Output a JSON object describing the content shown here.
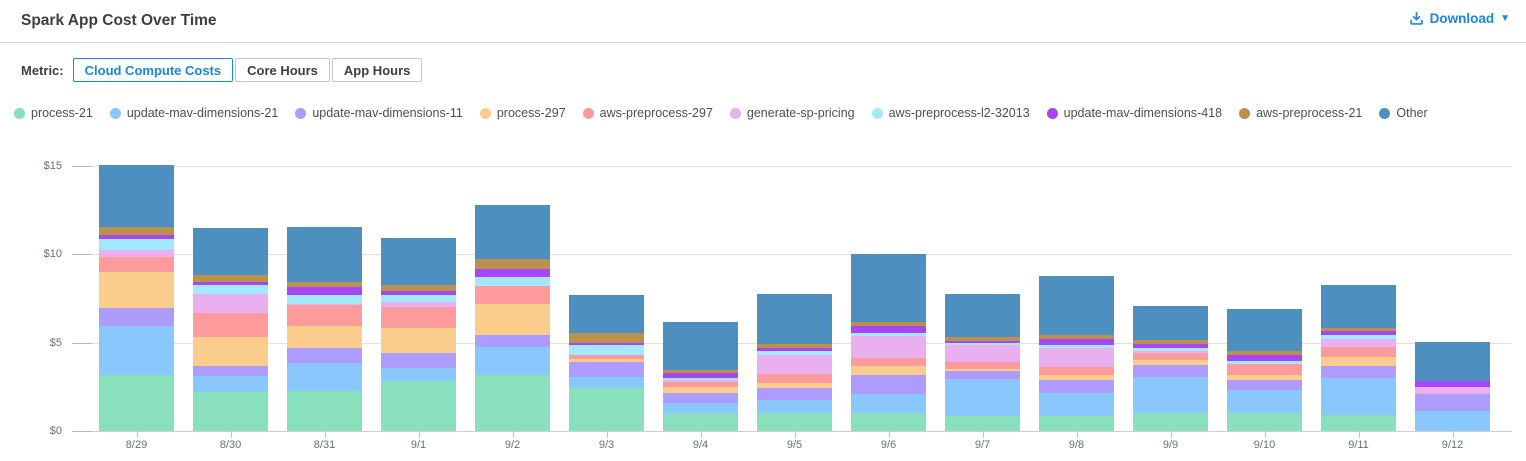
{
  "header": {
    "title": "Spark App Cost Over Time",
    "download_label": "Download"
  },
  "controls": {
    "metric_label": "Metric:",
    "options": [
      {
        "label": "Cloud Compute Costs",
        "active": true
      },
      {
        "label": "Core Hours",
        "active": false
      },
      {
        "label": "App Hours",
        "active": false
      }
    ]
  },
  "colors": {
    "accent_blue": "#1a86e3",
    "grid": "#e0e0e0",
    "axis_text": "#6a6e73"
  },
  "chart_data": {
    "type": "bar",
    "stacked": true,
    "title": "Spark App Cost Over Time",
    "xlabel": "",
    "ylabel": "",
    "ylim": [
      0,
      15
    ],
    "grid": true,
    "legend_position": "top",
    "y_ticks": [
      {
        "label": "$0",
        "value": 0
      },
      {
        "label": "$5",
        "value": 5
      },
      {
        "label": "$10",
        "value": 10
      },
      {
        "label": "$15",
        "value": 15
      }
    ],
    "categories": [
      "8/29",
      "8/30",
      "8/31",
      "9/1",
      "9/2",
      "9/3",
      "9/4",
      "9/5",
      "9/6",
      "9/7",
      "9/8",
      "9/9",
      "9/10",
      "9/11",
      "9/12"
    ],
    "series": [
      {
        "name": "process-21",
        "color": "#89e0bd",
        "values": [
          3.15,
          2.2,
          2.25,
          2.85,
          3.15,
          2.45,
          1.0,
          1.0,
          1.0,
          0.85,
          0.85,
          1.0,
          1.0,
          0.9,
          0
        ]
      },
      {
        "name": "update-mav-dimensions-21",
        "color": "#8ac7fc",
        "values": [
          2.8,
          0.9,
          1.6,
          0.7,
          1.6,
          0.6,
          0.6,
          0.75,
          1.1,
          2.1,
          1.3,
          2.05,
          1.3,
          2.1,
          1.15
        ]
      },
      {
        "name": "update-mav-dimensions-11",
        "color": "#ae9bfe",
        "values": [
          1.0,
          0.6,
          0.85,
          0.85,
          0.7,
          0.85,
          0.55,
          0.7,
          1.05,
          0.45,
          0.75,
          0.7,
          0.6,
          0.7,
          0.95
        ]
      },
      {
        "name": "process-297",
        "color": "#facd8c",
        "values": [
          2.05,
          1.6,
          1.25,
          1.45,
          1.7,
          0.2,
          0.35,
          0.25,
          0.5,
          0.1,
          0.25,
          0.25,
          0.25,
          0.5,
          0
        ]
      },
      {
        "name": "aws-preprocess-297",
        "color": "#fd9a9b",
        "values": [
          0.85,
          1.4,
          1.15,
          1.15,
          1.05,
          0.2,
          0.25,
          0.55,
          0.45,
          0.4,
          0.5,
          0.4,
          0.65,
          0.55,
          0
        ]
      },
      {
        "name": "generate-sp-pricing",
        "color": "#e9afef",
        "values": [
          0.4,
          1.05,
          0.1,
          0.3,
          0,
          0,
          0.15,
          1.05,
          1.25,
          0.95,
          1.05,
          0.1,
          0,
          0.45,
          0.4
        ]
      },
      {
        "name": "aws-preprocess-l2-32013",
        "color": "#a3e9fe",
        "values": [
          0.6,
          0.5,
          0.5,
          0.4,
          0.5,
          0.55,
          0.1,
          0.25,
          0.2,
          0.1,
          0.15,
          0.2,
          0.15,
          0.25,
          0
        ]
      },
      {
        "name": "update-mav-dimensions-418",
        "color": "#a845f7",
        "values": [
          0.25,
          0.2,
          0.45,
          0.2,
          0.45,
          0.15,
          0.3,
          0.15,
          0.4,
          0.15,
          0.35,
          0.2,
          0.35,
          0.2,
          0.35
        ]
      },
      {
        "name": "aws-preprocess-21",
        "color": "#bc914d",
        "values": [
          0.45,
          0.4,
          0.3,
          0.35,
          0.55,
          0.55,
          0.15,
          0.2,
          0.2,
          0.2,
          0.25,
          0.25,
          0.25,
          0.15,
          0
        ]
      },
      {
        "name": "Other",
        "color": "#4d8fbe",
        "values": [
          3.45,
          2.65,
          3.1,
          2.65,
          3.05,
          2.15,
          2.7,
          2.85,
          3.85,
          2.45,
          3.3,
          1.9,
          2.35,
          2.45,
          2.2
        ]
      }
    ]
  }
}
